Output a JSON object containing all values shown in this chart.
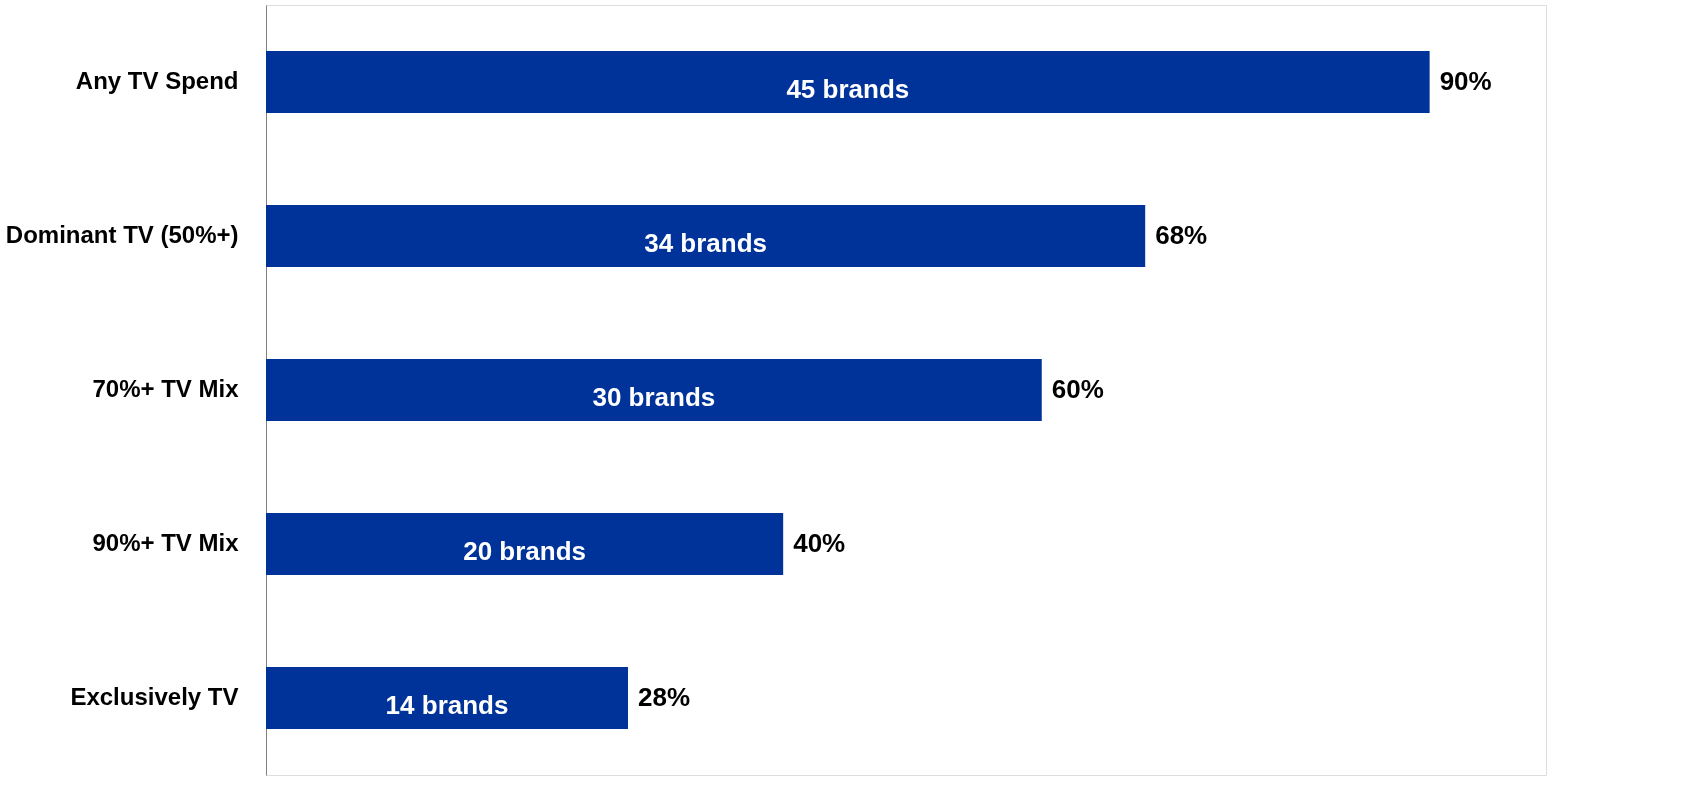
{
  "chart_data": {
    "type": "bar",
    "orientation": "horizontal",
    "categories": [
      "Any TV Spend",
      "Dominant TV (50%+)",
      "70%+ TV Mix",
      "90%+ TV Mix",
      "Exclusively TV"
    ],
    "values": [
      90,
      68,
      60,
      40,
      28
    ],
    "value_labels": [
      "90%",
      "68%",
      "60%",
      "40%",
      "28%"
    ],
    "color": "#003399",
    "annotations": [
      "45 brands",
      "34 brands",
      "30 brands",
      "20 brands",
      "14 brands"
    ],
    "tick_labels": "y",
    "grid": false
  }
}
